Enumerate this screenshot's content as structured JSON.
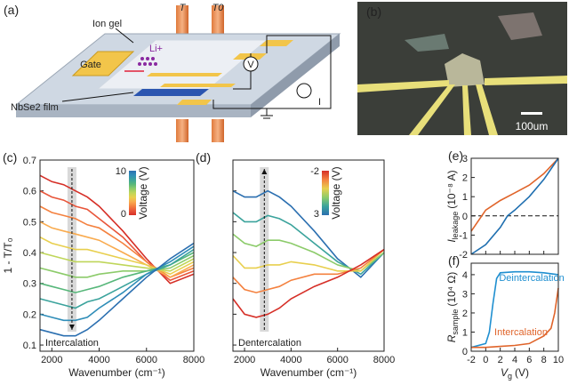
{
  "panels": {
    "a": "(a)",
    "b": "(b)"
  },
  "schematic": {
    "ion_gel": "Ion gel",
    "li": "Li+",
    "gate": "Gate",
    "t": "T",
    "t0": "T0",
    "v": "V",
    "i": "I",
    "film": "NbSe2 film"
  },
  "micrograph": {
    "scale_bar": "100um"
  },
  "chart_data": [
    {
      "type": "line",
      "panel_label": "(c)",
      "xlabel": "Wavenumber (cm⁻¹)",
      "ylabel": "1 - T/T₀",
      "x": [
        1500,
        2000,
        2500,
        3000,
        3500,
        4000,
        5000,
        6000,
        7000,
        8000
      ],
      "xlim": [
        1500,
        8000
      ],
      "xticks": [
        2000,
        4000,
        6000,
        8000
      ],
      "ylim": [
        0.08,
        0.7
      ],
      "yticks": [
        0.1,
        0.2,
        0.3,
        0.4,
        0.5,
        0.6,
        0.7
      ],
      "annotation": "Intercalation",
      "marker_x": 2850,
      "arrow": "down",
      "colorbar": {
        "label": "Voltage (V)",
        "max": 10,
        "min": 0
      },
      "series": [
        {
          "color": "#d62f27",
          "values": [
            0.65,
            0.63,
            0.62,
            0.6,
            0.58,
            0.55,
            0.47,
            0.38,
            0.3,
            0.33
          ]
        },
        {
          "color": "#e8553a",
          "values": [
            0.6,
            0.58,
            0.57,
            0.55,
            0.54,
            0.51,
            0.45,
            0.37,
            0.31,
            0.34
          ]
        },
        {
          "color": "#f4813f",
          "values": [
            0.55,
            0.53,
            0.52,
            0.51,
            0.49,
            0.48,
            0.43,
            0.37,
            0.32,
            0.35
          ]
        },
        {
          "color": "#f9ab4f",
          "values": [
            0.5,
            0.48,
            0.47,
            0.46,
            0.45,
            0.44,
            0.4,
            0.36,
            0.32,
            0.36
          ]
        },
        {
          "color": "#e8cf4e",
          "values": [
            0.45,
            0.43,
            0.42,
            0.41,
            0.41,
            0.4,
            0.38,
            0.36,
            0.33,
            0.37
          ]
        },
        {
          "color": "#bfd65a",
          "values": [
            0.4,
            0.39,
            0.38,
            0.37,
            0.37,
            0.37,
            0.36,
            0.35,
            0.34,
            0.38
          ]
        },
        {
          "color": "#8ccb6a",
          "values": [
            0.35,
            0.34,
            0.33,
            0.32,
            0.32,
            0.33,
            0.34,
            0.34,
            0.35,
            0.39
          ]
        },
        {
          "color": "#57b77a",
          "values": [
            0.3,
            0.29,
            0.28,
            0.27,
            0.28,
            0.29,
            0.32,
            0.34,
            0.36,
            0.4
          ]
        },
        {
          "color": "#3ba39c",
          "values": [
            0.25,
            0.24,
            0.23,
            0.22,
            0.24,
            0.25,
            0.29,
            0.33,
            0.36,
            0.41
          ]
        },
        {
          "color": "#2f8db8",
          "values": [
            0.2,
            0.19,
            0.18,
            0.18,
            0.19,
            0.22,
            0.27,
            0.33,
            0.37,
            0.42
          ]
        },
        {
          "color": "#2b6fb0",
          "values": [
            0.15,
            0.14,
            0.13,
            0.13,
            0.15,
            0.18,
            0.25,
            0.32,
            0.38,
            0.43
          ]
        }
      ]
    },
    {
      "type": "line",
      "panel_label": "(d)",
      "xlabel": "Wavenumber (cm⁻¹)",
      "x": [
        1500,
        2000,
        2500,
        3000,
        3500,
        4000,
        5000,
        6000,
        7000,
        8000
      ],
      "xlim": [
        1500,
        8000
      ],
      "xticks": [
        2000,
        4000,
        6000,
        8000
      ],
      "ylim": [
        0.08,
        0.7
      ],
      "yticks": [
        0.1,
        0.2,
        0.3,
        0.4,
        0.5,
        0.6,
        0.7
      ],
      "annotation": "Dentercalation",
      "marker_x": 2850,
      "arrow": "up",
      "colorbar": {
        "label": "Voltage (V)",
        "max": -2,
        "min": 3
      },
      "series": [
        {
          "color": "#2b6fb0",
          "values": [
            0.6,
            0.58,
            0.58,
            0.6,
            0.58,
            0.55,
            0.47,
            0.38,
            0.32,
            0.4
          ]
        },
        {
          "color": "#3ba39c",
          "values": [
            0.53,
            0.5,
            0.5,
            0.52,
            0.51,
            0.49,
            0.43,
            0.37,
            0.33,
            0.4
          ]
        },
        {
          "color": "#8ccb6a",
          "values": [
            0.46,
            0.43,
            0.42,
            0.44,
            0.44,
            0.43,
            0.4,
            0.36,
            0.34,
            0.4
          ]
        },
        {
          "color": "#e8cf4e",
          "values": [
            0.39,
            0.35,
            0.35,
            0.36,
            0.36,
            0.37,
            0.36,
            0.34,
            0.34,
            0.41
          ]
        },
        {
          "color": "#f4813f",
          "values": [
            0.32,
            0.28,
            0.27,
            0.28,
            0.29,
            0.31,
            0.33,
            0.33,
            0.35,
            0.41
          ]
        },
        {
          "color": "#d62f27",
          "values": [
            0.25,
            0.2,
            0.19,
            0.2,
            0.22,
            0.25,
            0.29,
            0.32,
            0.36,
            0.41
          ]
        }
      ]
    },
    {
      "type": "line",
      "panel_label": "(e)",
      "ylabel": {
        "main": "I",
        "sub": "leakage",
        "unit": "(10⁻⁸ A)"
      },
      "xlim": [
        -2,
        10
      ],
      "xticks": [
        -2,
        0,
        2,
        4,
        6,
        8,
        10
      ],
      "ylim": [
        -2,
        3
      ],
      "yticks": [
        -2,
        -1,
        0,
        1,
        2,
        3
      ],
      "hline": 0,
      "series": [
        {
          "color": "#e0642a",
          "x": [
            -2,
            0,
            2,
            4,
            6,
            8,
            10
          ],
          "values": [
            -0.8,
            0.3,
            0.8,
            1.2,
            1.6,
            2.2,
            3
          ]
        },
        {
          "color": "#1f6fb0",
          "x": [
            -2,
            0,
            2,
            3,
            4,
            6,
            8,
            10
          ],
          "values": [
            -2,
            -1.5,
            -0.6,
            0,
            0.3,
            1,
            1.9,
            3
          ]
        }
      ]
    },
    {
      "type": "line",
      "panel_label": "(f)",
      "ylabel": {
        "main": "R",
        "sub": "sample",
        "unit": "(10⁴ Ω)"
      },
      "xlabel": {
        "main": "V",
        "sub": "g",
        "unit": "(V)"
      },
      "xlim": [
        -2,
        10
      ],
      "xticks": [
        -2,
        0,
        2,
        4,
        6,
        8,
        10
      ],
      "ylim": [
        0,
        4.6
      ],
      "yticks": [
        0,
        1,
        2,
        3,
        4
      ],
      "series": [
        {
          "name": "Deintercalation",
          "color": "#1f8fd0",
          "x": [
            -2,
            0,
            0.5,
            1,
            1.5,
            2,
            4,
            6,
            8,
            10
          ],
          "values": [
            0.2,
            0.4,
            1,
            2.5,
            3.8,
            4.1,
            4.15,
            4.15,
            4.1,
            4.0
          ]
        },
        {
          "name": "Intercalation",
          "color": "#e0642a",
          "x": [
            -2,
            0,
            2,
            4,
            6,
            7,
            8,
            9,
            9.5,
            10
          ],
          "values": [
            0.2,
            0.2,
            0.25,
            0.3,
            0.4,
            0.6,
            0.8,
            1.2,
            2,
            3.3
          ]
        }
      ]
    }
  ]
}
